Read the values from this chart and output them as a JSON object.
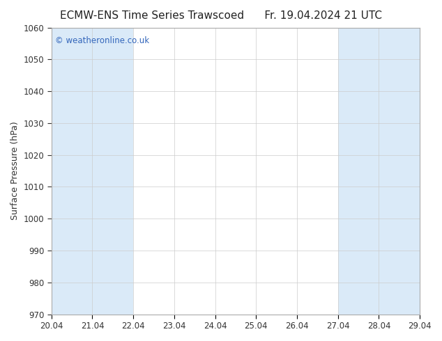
{
  "title_left": "ECMW-ENS Time Series Trawscoed",
  "title_right": "Fr. 19.04.2024 21 UTC",
  "ylabel": "Surface Pressure (hPa)",
  "ylim": [
    970,
    1060
  ],
  "yticks": [
    970,
    980,
    990,
    1000,
    1010,
    1020,
    1030,
    1040,
    1050,
    1060
  ],
  "xlim": [
    0,
    9
  ],
  "xtick_labels": [
    "20.04",
    "21.04",
    "22.04",
    "23.04",
    "24.04",
    "25.04",
    "26.04",
    "27.04",
    "28.04",
    "29.04"
  ],
  "xtick_positions": [
    0,
    1,
    2,
    3,
    4,
    5,
    6,
    7,
    8,
    9
  ],
  "plot_bg": "#ffffff",
  "figure_bg": "#ffffff",
  "band_color": "#daeaf8",
  "band_ranges": [
    [
      0,
      2
    ],
    [
      7,
      9
    ]
  ],
  "watermark": "© weatheronline.co.uk",
  "watermark_color": "#3366bb",
  "title_fontsize": 11,
  "label_fontsize": 9,
  "tick_fontsize": 8.5,
  "spine_color": "#aaaaaa",
  "tick_color": "#333333"
}
